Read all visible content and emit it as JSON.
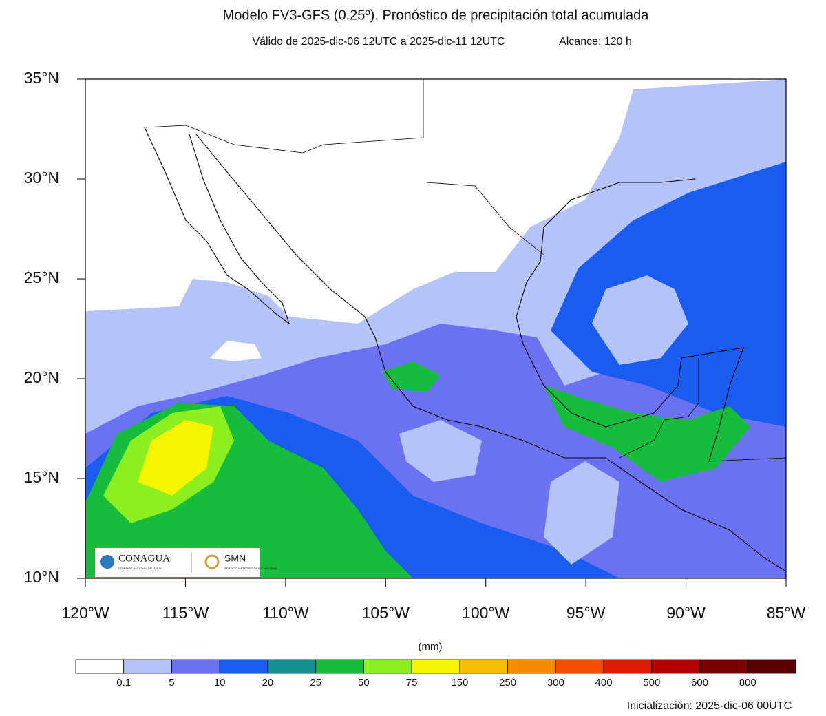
{
  "title": "Modelo FV3-GFS (0.25º). Pronóstico de precipitación total acumulada",
  "subtitle": "Válido de 2025-dic-06 12UTC a 2025-dic-11 12UTC",
  "range": "Alcance: 120 h",
  "map": {
    "xlim": [
      -120,
      -85
    ],
    "ylim": [
      10,
      35
    ],
    "xticks": [
      {
        "value": -120,
        "label": "120°W"
      },
      {
        "value": -115,
        "label": "115°W"
      },
      {
        "value": -110,
        "label": "110°W"
      },
      {
        "value": -105,
        "label": "105°W"
      },
      {
        "value": -100,
        "label": "100°W"
      },
      {
        "value": -95,
        "label": "95°W"
      },
      {
        "value": -90,
        "label": "90°W"
      },
      {
        "value": -85,
        "label": "85°W"
      }
    ],
    "yticks": [
      {
        "value": 10,
        "label": "10°N"
      },
      {
        "value": 15,
        "label": "15°N"
      },
      {
        "value": 20,
        "label": "20°N"
      },
      {
        "value": 25,
        "label": "25°N"
      },
      {
        "value": 30,
        "label": "30°N"
      },
      {
        "value": 35,
        "label": "35°N"
      }
    ]
  },
  "colorbar": {
    "unit": "(mm)",
    "levels": [
      0.1,
      5,
      10,
      20,
      25,
      50,
      75,
      150,
      250,
      300,
      400,
      500,
      600,
      800
    ],
    "colors": [
      "#ffffff",
      "#b4c4f8",
      "#6a72f2",
      "#1b5cf0",
      "#139090",
      "#16bd3c",
      "#8cf020",
      "#f5f500",
      "#f5c000",
      "#f58c00",
      "#f54c00",
      "#e01a00",
      "#b40000",
      "#7a0000",
      "#5a0000"
    ]
  },
  "logo": {
    "conagua": "CONAGUA",
    "conagua_sub": "COMISIÓN NACIONAL DEL AGUA",
    "smn": "SMN",
    "smn_sub": "SERVICIO METEOROLÓGICO NACIONAL"
  },
  "init": "Inicialización: 2025-dic-06 00UTC"
}
